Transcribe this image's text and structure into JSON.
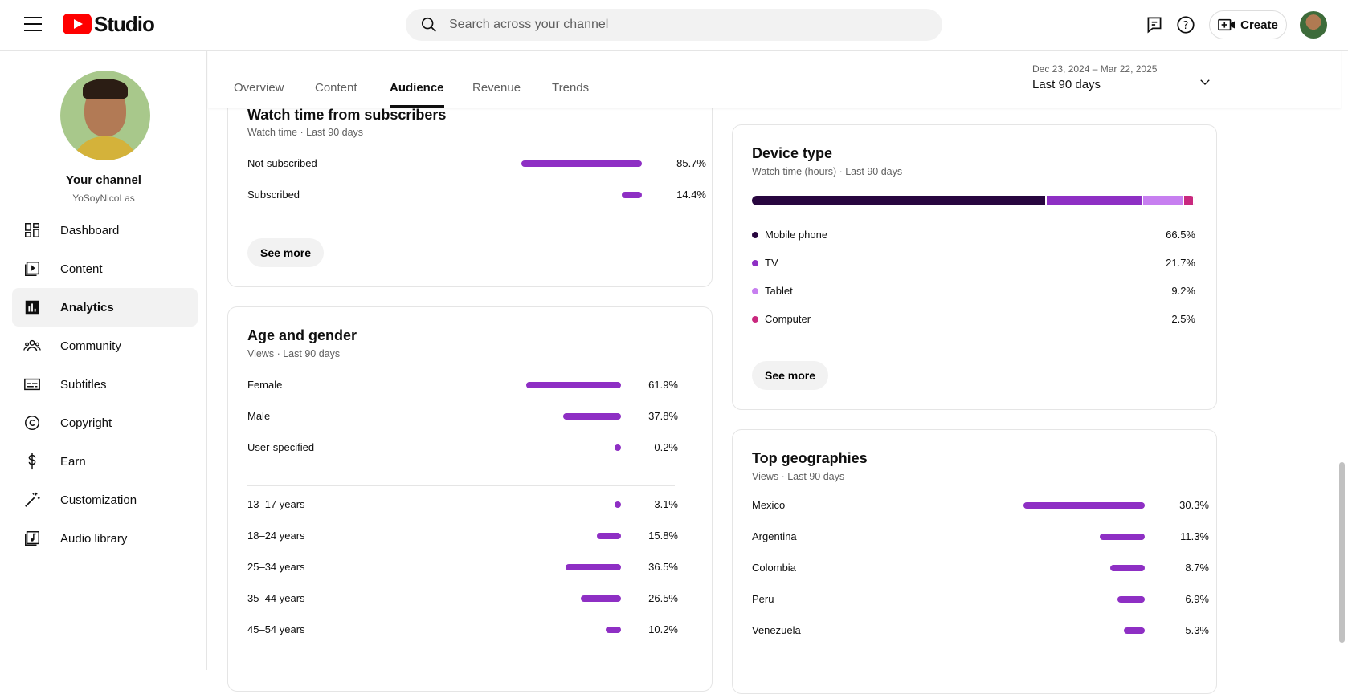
{
  "header": {
    "logo_text": "Studio",
    "search_placeholder": "Search across your channel",
    "create_label": "Create"
  },
  "sidebar": {
    "channel_title": "Your channel",
    "channel_handle": "YoSoyNicoLas",
    "items": [
      {
        "label": "Dashboard",
        "icon": "dashboard-icon"
      },
      {
        "label": "Content",
        "icon": "content-icon"
      },
      {
        "label": "Analytics",
        "icon": "analytics-icon",
        "active": true
      },
      {
        "label": "Community",
        "icon": "community-icon"
      },
      {
        "label": "Subtitles",
        "icon": "subtitles-icon"
      },
      {
        "label": "Copyright",
        "icon": "copyright-icon"
      },
      {
        "label": "Earn",
        "icon": "earn-icon"
      },
      {
        "label": "Customization",
        "icon": "customization-icon"
      },
      {
        "label": "Audio library",
        "icon": "audio-library-icon"
      }
    ]
  },
  "tabs": [
    "Overview",
    "Content",
    "Audience",
    "Revenue",
    "Trends"
  ],
  "active_tab": "Audience",
  "date_range": {
    "dates": "Dec 23, 2024 – Mar 22, 2025",
    "label": "Last 90 days"
  },
  "subscribers_card": {
    "title": "Watch time from subscribers",
    "subtitle": "Watch time · Last 90 days",
    "rows": [
      {
        "label": "Not subscribed",
        "value": "85.7%",
        "pct": 85.7
      },
      {
        "label": "Subscribed",
        "value": "14.4%",
        "pct": 14.4
      }
    ],
    "see_more": "See more"
  },
  "age_gender_card": {
    "title": "Age and gender",
    "subtitle": "Views · Last 90 days",
    "gender_rows": [
      {
        "label": "Female",
        "value": "61.9%",
        "pct": 61.9
      },
      {
        "label": "Male",
        "value": "37.8%",
        "pct": 37.8
      },
      {
        "label": "User-specified",
        "value": "0.2%",
        "pct": 0.2
      }
    ],
    "age_rows": [
      {
        "label": "13–17 years",
        "value": "3.1%",
        "pct": 3.1
      },
      {
        "label": "18–24 years",
        "value": "15.8%",
        "pct": 15.8
      },
      {
        "label": "25–34 years",
        "value": "36.5%",
        "pct": 36.5
      },
      {
        "label": "35–44 years",
        "value": "26.5%",
        "pct": 26.5
      },
      {
        "label": "45–54 years",
        "value": "10.2%",
        "pct": 10.2
      }
    ]
  },
  "device_card": {
    "title": "Device type",
    "subtitle": "Watch time (hours) · Last 90 days",
    "segments": [
      {
        "label": "Mobile phone",
        "value": "66.5%",
        "pct": 66.5,
        "color": "#28063f"
      },
      {
        "label": "TV",
        "value": "21.7%",
        "pct": 21.7,
        "color": "#8e2fc4"
      },
      {
        "label": "Tablet",
        "value": "9.2%",
        "pct": 9.2,
        "color": "#c77ff0"
      },
      {
        "label": "Computer",
        "value": "2.5%",
        "pct": 2.5,
        "color": "#c9287e"
      }
    ],
    "see_more": "See more"
  },
  "geo_card": {
    "title": "Top geographies",
    "subtitle": "Views · Last 90 days",
    "rows": [
      {
        "label": "Mexico",
        "value": "30.3%",
        "pct": 30.3
      },
      {
        "label": "Argentina",
        "value": "11.3%",
        "pct": 11.3
      },
      {
        "label": "Colombia",
        "value": "8.7%",
        "pct": 8.7
      },
      {
        "label": "Peru",
        "value": "6.9%",
        "pct": 6.9
      },
      {
        "label": "Venezuela",
        "value": "5.3%",
        "pct": 5.3
      }
    ]
  },
  "colors": {
    "bar": "#8e2fc4",
    "youtube_red": "#ff0000"
  }
}
